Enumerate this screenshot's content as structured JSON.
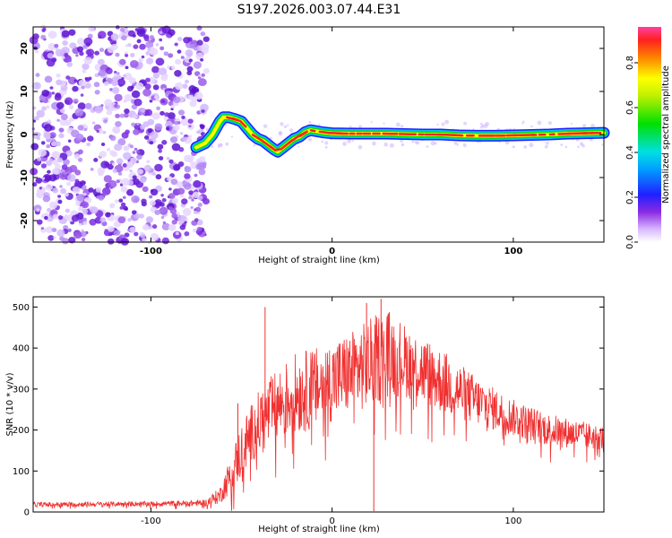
{
  "figure": {
    "title": "S197.2026.003.07.44.E31"
  },
  "chart_data": [
    {
      "type": "heatmap",
      "xlabel": "Height of straight line (km)",
      "ylabel": "Frequency (Hz)",
      "xlim": [
        -165,
        150
      ],
      "ylim": [
        -25,
        25
      ],
      "x_ticks": [
        "-100",
        "0",
        "100"
      ],
      "y_ticks": [
        "20",
        "10",
        "0",
        "-10",
        "-20"
      ],
      "noise_region_x": [
        -165,
        -72
      ],
      "ridge": {
        "x": [
          -75,
          -70,
          -66,
          -62,
          -60,
          -57,
          -53,
          -50,
          -47,
          -44,
          -41,
          -38,
          -35,
          -32,
          -30,
          -27,
          -24,
          -21,
          -18,
          -15,
          -12,
          -9,
          -5,
          0,
          10,
          20,
          30,
          40,
          50,
          60,
          70,
          80,
          90,
          100,
          110,
          120,
          130,
          140,
          150
        ],
        "y": [
          -3,
          -2,
          0,
          3,
          4,
          4,
          3.5,
          3,
          1.5,
          0,
          -1,
          -1.5,
          -2.5,
          -3.5,
          -4,
          -3,
          -2,
          -1,
          -0.5,
          0.5,
          1,
          0.8,
          0.5,
          0.3,
          0.2,
          0.2,
          0.2,
          0.1,
          0,
          0,
          -0.2,
          -0.3,
          -0.3,
          -0.2,
          -0.1,
          0,
          0.2,
          0.3,
          0.4
        ]
      },
      "colorbar": {
        "label": "Normalized spectral amplitude",
        "ticks": [
          "0.0",
          "0.2",
          "0.4",
          "0.6",
          "0.8"
        ],
        "range": [
          0,
          0.96
        ]
      }
    },
    {
      "type": "line",
      "xlabel": "Height of straight line (km)",
      "ylabel": "SNR (10 * v/v)",
      "xlim": [
        -165,
        150
      ],
      "ylim": [
        0,
        525
      ],
      "x_ticks": [
        "-100",
        "0",
        "100"
      ],
      "y_ticks": [
        "0",
        "100",
        "200",
        "300",
        "400",
        "500"
      ],
      "line_color": "#f03030",
      "envelope": {
        "x": [
          -165,
          -100,
          -70,
          -62,
          -55,
          -50,
          -45,
          -40,
          -30,
          -20,
          -10,
          0,
          10,
          20,
          30,
          40,
          60,
          80,
          100,
          120,
          150
        ],
        "mid": [
          18,
          20,
          22,
          40,
          100,
          150,
          190,
          220,
          260,
          290,
          300,
          320,
          340,
          360,
          390,
          370,
          320,
          270,
          230,
          200,
          180
        ],
        "spread": [
          6,
          6,
          8,
          20,
          50,
          70,
          70,
          80,
          90,
          100,
          100,
          100,
          100,
          110,
          110,
          90,
          80,
          60,
          45,
          40,
          30
        ]
      },
      "spikes": [
        {
          "x": -37,
          "y": 500
        },
        {
          "x": -52,
          "y": 265
        },
        {
          "x": 27,
          "y": 520
        },
        {
          "x": 19,
          "y": 510
        }
      ],
      "dips": [
        {
          "x": 23,
          "y": 2
        }
      ]
    }
  ]
}
